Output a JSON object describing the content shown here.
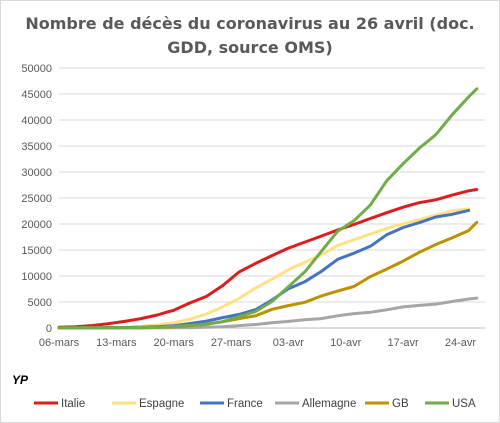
{
  "chart_data": {
    "type": "line",
    "title": "Nombre de décès du coronavirus au 26 avril (doc. GDD, source OMS)",
    "title_lines": [
      "Nombre de décès du coronavirus au 26 avril (doc.",
      "GDD, source OMS)"
    ],
    "author_mark": "YP",
    "ylim": [
      0,
      50000
    ],
    "y_ticks": [
      "0",
      "5000",
      "10000",
      "15000",
      "20000",
      "25000",
      "30000",
      "35000",
      "40000",
      "45000",
      "50000"
    ],
    "x_ticks": [
      "06-mars",
      "13-mars",
      "20-mars",
      "27-mars",
      "03-avr",
      "10-avr",
      "17-avr",
      "24-avr"
    ],
    "x_start": "06-mars",
    "x_end": "26-avr",
    "grid": "horizontal",
    "legend_position": "bottom",
    "series": [
      {
        "name": "Italie",
        "color": "#e31a1c",
        "points": [
          [
            0,
            148
          ],
          [
            2,
            233
          ],
          [
            4,
            463
          ],
          [
            6,
            827
          ],
          [
            8,
            1266
          ],
          [
            10,
            1809
          ],
          [
            12,
            2503
          ],
          [
            13,
            2978
          ],
          [
            14,
            3405
          ],
          [
            16,
            4825
          ],
          [
            18,
            6077
          ],
          [
            20,
            8165
          ],
          [
            22,
            10779
          ],
          [
            24,
            12428
          ],
          [
            26,
            13915
          ],
          [
            28,
            15362
          ],
          [
            30,
            16523
          ],
          [
            32,
            17669
          ],
          [
            34,
            18849
          ],
          [
            36,
            19899
          ],
          [
            38,
            21067
          ],
          [
            40,
            22170
          ],
          [
            42,
            23227
          ],
          [
            44,
            24114
          ],
          [
            46,
            24648
          ],
          [
            48,
            25549
          ],
          [
            50,
            26384
          ],
          [
            51,
            26644
          ]
        ]
      },
      {
        "name": "Espagne",
        "color": "#ffe082",
        "points": [
          [
            0,
            5
          ],
          [
            4,
            36
          ],
          [
            8,
            136
          ],
          [
            10,
            288
          ],
          [
            12,
            598
          ],
          [
            14,
            1002
          ],
          [
            16,
            1720
          ],
          [
            18,
            2696
          ],
          [
            20,
            4089
          ],
          [
            22,
            5690
          ],
          [
            24,
            7716
          ],
          [
            26,
            9387
          ],
          [
            28,
            11198
          ],
          [
            30,
            12641
          ],
          [
            32,
            14045
          ],
          [
            34,
            15843
          ],
          [
            36,
            16972
          ],
          [
            38,
            18056
          ],
          [
            40,
            19130
          ],
          [
            42,
            20043
          ],
          [
            44,
            20852
          ],
          [
            46,
            21717
          ],
          [
            48,
            22524
          ],
          [
            50,
            22902
          ]
        ]
      },
      {
        "name": "France",
        "color": "#4472c4",
        "points": [
          [
            0,
            9
          ],
          [
            4,
            48
          ],
          [
            8,
            91
          ],
          [
            10,
            148
          ],
          [
            12,
            264
          ],
          [
            14,
            450
          ],
          [
            16,
            860
          ],
          [
            18,
            1331
          ],
          [
            20,
            1995
          ],
          [
            22,
            2606
          ],
          [
            24,
            3523
          ],
          [
            26,
            5387
          ],
          [
            28,
            7560
          ],
          [
            30,
            8911
          ],
          [
            32,
            10869
          ],
          [
            34,
            13197
          ],
          [
            36,
            14393
          ],
          [
            38,
            15712
          ],
          [
            40,
            17920
          ],
          [
            42,
            19323
          ],
          [
            44,
            20265
          ],
          [
            46,
            21340
          ],
          [
            48,
            21856
          ],
          [
            50,
            22614
          ]
        ]
      },
      {
        "name": "Allemagne",
        "color": "#a6a6a6",
        "points": [
          [
            0,
            0
          ],
          [
            6,
            3
          ],
          [
            10,
            13
          ],
          [
            14,
            47
          ],
          [
            16,
            84
          ],
          [
            18,
            149
          ],
          [
            20,
            253
          ],
          [
            22,
            455
          ],
          [
            24,
            682
          ],
          [
            26,
            1017
          ],
          [
            28,
            1275
          ],
          [
            30,
            1584
          ],
          [
            32,
            1810
          ],
          [
            34,
            2349
          ],
          [
            36,
            2767
          ],
          [
            38,
            3022
          ],
          [
            40,
            3495
          ],
          [
            42,
            4052
          ],
          [
            44,
            4352
          ],
          [
            46,
            4598
          ],
          [
            48,
            5094
          ],
          [
            50,
            5575
          ],
          [
            51,
            5750
          ]
        ]
      },
      {
        "name": "GB",
        "color": "#bf9000",
        "points": [
          [
            0,
            2
          ],
          [
            6,
            10
          ],
          [
            10,
            56
          ],
          [
            12,
            144
          ],
          [
            14,
            233
          ],
          [
            16,
            422
          ],
          [
            18,
            759
          ],
          [
            20,
            1228
          ],
          [
            22,
            1789
          ],
          [
            24,
            2352
          ],
          [
            26,
            3605
          ],
          [
            28,
            4313
          ],
          [
            30,
            4934
          ],
          [
            32,
            6159
          ],
          [
            34,
            7097
          ],
          [
            36,
            7978
          ],
          [
            38,
            9875
          ],
          [
            40,
            11329
          ],
          [
            42,
            12868
          ],
          [
            44,
            14576
          ],
          [
            46,
            16060
          ],
          [
            48,
            17337
          ],
          [
            50,
            18738
          ],
          [
            51,
            20319
          ]
        ]
      },
      {
        "name": "USA",
        "color": "#70ad47",
        "points": [
          [
            0,
            11
          ],
          [
            6,
            22
          ],
          [
            10,
            57
          ],
          [
            12,
            149
          ],
          [
            14,
            302
          ],
          [
            16,
            499
          ],
          [
            18,
            704
          ],
          [
            20,
            1209
          ],
          [
            22,
            2191
          ],
          [
            24,
            3170
          ],
          [
            26,
            5102
          ],
          [
            28,
            7938
          ],
          [
            30,
            10783
          ],
          [
            32,
            14695
          ],
          [
            34,
            18586
          ],
          [
            36,
            20608
          ],
          [
            38,
            23640
          ],
          [
            40,
            28300
          ],
          [
            42,
            31590
          ],
          [
            44,
            34617
          ],
          [
            46,
            37175
          ],
          [
            48,
            41026
          ],
          [
            50,
            44444
          ],
          [
            51,
            46000
          ]
        ]
      }
    ]
  }
}
